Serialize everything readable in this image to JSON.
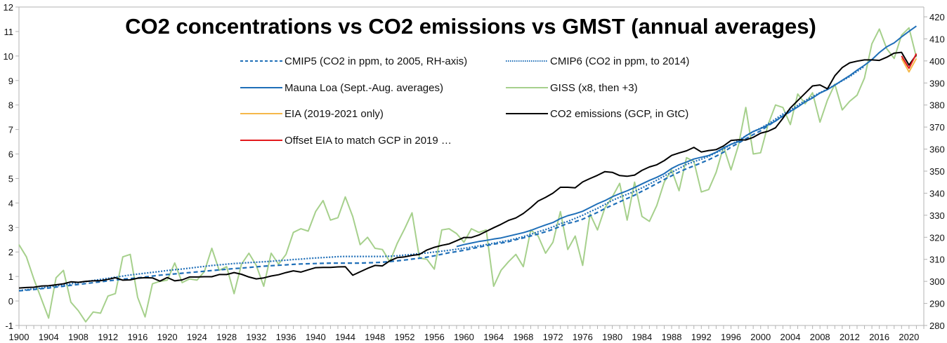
{
  "chart_data": {
    "type": "line",
    "title": "CO2 concentrations vs CO2 emissions vs GMST (annual averages)",
    "xlabel": "",
    "ylabel_left": "",
    "ylabel_right": "",
    "x_range": [
      1900,
      2021
    ],
    "ylim_left": [
      -1,
      12
    ],
    "ylim_right": [
      280,
      420
    ],
    "left_ticks": [
      "-1",
      "0",
      "1",
      "2",
      "3",
      "4",
      "5",
      "6",
      "7",
      "8",
      "9",
      "10",
      "11",
      "12"
    ],
    "right_ticks": [
      "280",
      "290",
      "300",
      "310",
      "320",
      "330",
      "340",
      "350",
      "360",
      "370",
      "380",
      "390",
      "400",
      "410",
      "420"
    ],
    "x_ticks": [
      "1900",
      "1904",
      "1908",
      "1912",
      "1916",
      "1920",
      "1924",
      "1928",
      "1932",
      "1936",
      "1940",
      "1944",
      "1948",
      "1952",
      "1956",
      "1960",
      "1964",
      "1968",
      "1972",
      "1976",
      "1980",
      "1984",
      "1988",
      "1992",
      "1996",
      "2000",
      "2004",
      "2008",
      "2012",
      "2016",
      "2020"
    ],
    "grid": false,
    "legend_position": "top-center",
    "legend": [
      {
        "label": "CMIP5 (CO2 in ppm, to 2005, RH-axis)",
        "color": "#1f6fb8",
        "style": "dashed"
      },
      {
        "label": "CMIP6 (CO2 in ppm, to 2014)",
        "color": "#1f6fb8",
        "style": "dotted"
      },
      {
        "label": "Mauna Loa (Sept.-Aug. averages)",
        "color": "#1f6fb8",
        "style": "solid"
      },
      {
        "label": "GISS (x8, then +3)",
        "color": "#a6d08c",
        "style": "solid"
      },
      {
        "label": "EIA (2019-2021 only)",
        "color": "#f5b84a",
        "style": "solid"
      },
      {
        "label": "CO2 emissions (GCP, in GtC)",
        "color": "#000000",
        "style": "solid"
      },
      {
        "label": "Offset EIA to match GCP in 2019 …",
        "color": "#e3191c",
        "style": "solid"
      }
    ],
    "series": [
      {
        "name": "CMIP5 (CO2 in ppm, to 2005, RH-axis)",
        "axis": "right",
        "start_year": 1900,
        "values": [
          295.7,
          296.0,
          296.3,
          296.7,
          297.0,
          297.4,
          297.8,
          298.2,
          298.6,
          299.0,
          299.4,
          299.8,
          300.2,
          300.6,
          301.0,
          301.3,
          301.6,
          302.0,
          302.4,
          302.8,
          303.1,
          303.4,
          303.7,
          304.0,
          304.3,
          304.6,
          304.9,
          305.2,
          305.5,
          305.8,
          306.0,
          306.3,
          306.6,
          306.9,
          307.1,
          307.3,
          307.5,
          307.7,
          307.9,
          308.0,
          308.1,
          308.2,
          308.3,
          308.3,
          308.3,
          308.3,
          308.3,
          308.4,
          308.5,
          308.7,
          309.0,
          309.3,
          309.7,
          310.1,
          310.5,
          311.0,
          311.6,
          312.3,
          313.0,
          313.5,
          314.1,
          314.8,
          315.5,
          316.2,
          316.9,
          317.4,
          318.0,
          318.9,
          319.7,
          320.6,
          321.5,
          322.5,
          323.6,
          325.0,
          326.3,
          327.1,
          328.2,
          329.8,
          331.3,
          333.0,
          334.6,
          336.1,
          337.6,
          339.1,
          340.9,
          342.6,
          344.4,
          346.2,
          347.9,
          349.6,
          351.1,
          352.4,
          353.8,
          355.2,
          356.8,
          358.6,
          360.9,
          362.7,
          364.7,
          366.6,
          368.3,
          370.6,
          372.8,
          374.9,
          377.0,
          379.2
        ]
      },
      {
        "name": "CMIP6 (CO2 in ppm, to 2014)",
        "axis": "right",
        "start_year": 1900,
        "values": [
          295.8,
          296.2,
          296.6,
          297.0,
          297.5,
          297.9,
          298.4,
          298.9,
          299.4,
          299.9,
          300.4,
          300.9,
          301.4,
          301.9,
          302.4,
          302.9,
          303.3,
          303.7,
          304.1,
          304.5,
          304.9,
          305.3,
          305.6,
          306.0,
          306.4,
          306.8,
          307.2,
          307.5,
          307.8,
          308.1,
          308.3,
          308.5,
          308.7,
          308.9,
          309.1,
          309.4,
          309.6,
          309.9,
          310.1,
          310.4,
          310.6,
          310.8,
          311.0,
          311.2,
          311.3,
          311.3,
          311.3,
          311.3,
          311.3,
          311.3,
          311.4,
          311.6,
          311.9,
          312.2,
          312.6,
          312.9,
          313.3,
          313.7,
          314.1,
          314.6,
          315.0,
          315.5,
          316.1,
          316.7,
          317.3,
          318.0,
          318.6,
          319.4,
          320.3,
          321.3,
          322.5,
          323.5,
          324.7,
          326.2,
          327.2,
          328.6,
          330.0,
          331.6,
          333.1,
          334.9,
          336.7,
          338.2,
          339.5,
          340.8,
          342.4,
          344.1,
          345.9,
          347.8,
          349.5,
          351.2,
          353.1,
          354.3,
          355.4,
          356.7,
          358.4,
          360.0,
          362.1,
          363.9,
          366.0,
          367.9,
          369.5,
          371.4,
          373.6,
          375.9,
          377.8,
          379.9,
          382.0,
          383.8,
          385.6,
          387.2,
          389.1,
          391.0,
          392.9,
          395.2,
          397.5
        ]
      },
      {
        "name": "Mauna Loa (Sept.-Aug. averages)",
        "axis": "right",
        "start_year": 1959,
        "values": [
          315.8,
          316.7,
          317.4,
          318.1,
          318.6,
          319.2,
          319.7,
          320.5,
          321.3,
          322.1,
          323.1,
          324.4,
          325.6,
          326.7,
          328.5,
          329.8,
          330.7,
          331.8,
          333.5,
          335.2,
          336.6,
          338.4,
          339.8,
          341.1,
          342.6,
          344.2,
          345.8,
          347.2,
          348.9,
          351.2,
          352.9,
          354.1,
          355.5,
          356.3,
          357.1,
          358.6,
          360.6,
          362.2,
          363.4,
          366.0,
          368.0,
          369.3,
          371.0,
          372.7,
          375.1,
          377.1,
          379.1,
          381.4,
          383.2,
          385.4,
          387.0,
          389.0,
          391.2,
          393.3,
          395.8,
          398.0,
          400.6,
          403.8,
          406.4,
          408.2,
          410.9,
          413.4,
          415.8
        ]
      },
      {
        "name": "GISS (x8, then +3)",
        "axis": "left",
        "start_year": 1900,
        "values": [
          2.3,
          1.8,
          0.9,
          0.1,
          -0.7,
          0.95,
          1.25,
          -0.05,
          -0.4,
          -0.85,
          -0.45,
          -0.5,
          0.2,
          0.3,
          1.8,
          1.9,
          0.15,
          -0.65,
          0.7,
          0.8,
          0.85,
          1.55,
          0.75,
          0.9,
          0.85,
          1.2,
          2.15,
          1.25,
          1.4,
          0.3,
          1.5,
          1.95,
          1.45,
          0.6,
          1.95,
          1.5,
          1.9,
          2.8,
          2.95,
          2.85,
          3.65,
          4.1,
          3.3,
          3.4,
          4.25,
          3.45,
          2.3,
          2.6,
          2.15,
          2.1,
          1.6,
          2.35,
          2.95,
          3.6,
          1.75,
          1.7,
          1.3,
          2.9,
          2.95,
          2.75,
          2.4,
          2.95,
          2.8,
          2.9,
          0.6,
          1.25,
          1.6,
          1.9,
          1.4,
          2.9,
          2.65,
          1.95,
          2.4,
          3.65,
          2.1,
          2.65,
          1.45,
          3.55,
          2.9,
          3.8,
          4.25,
          4.8,
          3.3,
          4.85,
          3.45,
          3.25,
          3.9,
          4.85,
          5.35,
          4.5,
          5.85,
          5.7,
          4.45,
          4.55,
          5.25,
          6.3,
          5.35,
          6.35,
          7.9,
          6.0,
          6.05,
          7.2,
          8.0,
          7.9,
          7.2,
          8.45,
          8.05,
          8.5,
          7.3,
          8.2,
          8.85,
          7.8,
          8.15,
          8.4,
          9.1,
          10.5,
          11.1,
          10.3,
          9.9,
          10.85,
          11.15,
          9.95
        ]
      },
      {
        "name": "EIA (2019-2021 only)",
        "axis": "left",
        "start_year": 2019,
        "values": [
          9.9,
          9.35,
          9.9
        ]
      },
      {
        "name": "CO2 emissions (GCP, in GtC)",
        "axis": "left",
        "start_year": 1900,
        "values": [
          0.53,
          0.55,
          0.56,
          0.61,
          0.62,
          0.66,
          0.7,
          0.78,
          0.76,
          0.8,
          0.82,
          0.83,
          0.88,
          0.95,
          0.85,
          0.86,
          0.93,
          0.95,
          0.94,
          0.81,
          0.96,
          0.82,
          0.86,
          0.98,
          0.98,
          0.99,
          0.99,
          1.08,
          1.08,
          1.16,
          1.09,
          0.98,
          0.9,
          0.94,
          1.02,
          1.07,
          1.16,
          1.23,
          1.18,
          1.27,
          1.36,
          1.37,
          1.37,
          1.39,
          1.4,
          1.05,
          1.19,
          1.33,
          1.45,
          1.43,
          1.64,
          1.77,
          1.8,
          1.86,
          1.9,
          2.08,
          2.19,
          2.27,
          2.33,
          2.46,
          2.59,
          2.59,
          2.69,
          2.84,
          2.99,
          3.13,
          3.29,
          3.39,
          3.57,
          3.81,
          4.08,
          4.23,
          4.4,
          4.64,
          4.64,
          4.62,
          4.86,
          5.0,
          5.13,
          5.28,
          5.25,
          5.12,
          5.09,
          5.14,
          5.33,
          5.47,
          5.56,
          5.73,
          5.94,
          6.04,
          6.13,
          6.27,
          6.08,
          6.14,
          6.18,
          6.33,
          6.55,
          6.58,
          6.57,
          6.68,
          6.85,
          6.93,
          7.07,
          7.46,
          7.88,
          8.18,
          8.48,
          8.78,
          8.82,
          8.66,
          9.19,
          9.53,
          9.72,
          9.79,
          9.84,
          9.84,
          9.82,
          9.95,
          10.12,
          10.15,
          9.63,
          10.05
        ]
      },
      {
        "name": "Offset EIA to match GCP in 2019 …",
        "axis": "left",
        "start_year": 2019,
        "values": [
          10.0,
          9.5,
          10.1
        ]
      }
    ]
  }
}
